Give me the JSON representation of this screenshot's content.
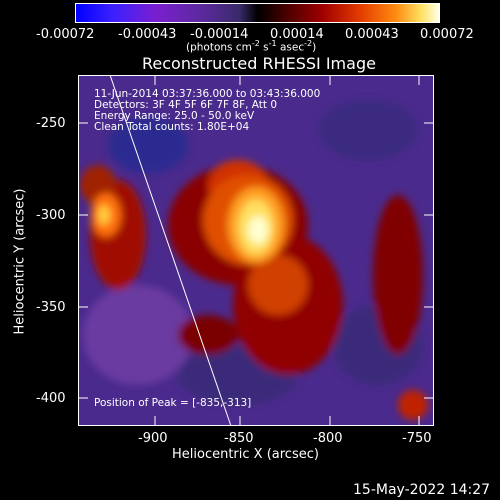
{
  "colorbar": {
    "ticks": [
      "-0.00072",
      "-0.00043",
      "-0.00014",
      "0.00014",
      "0.00043",
      "0.00072"
    ],
    "unit_label": "(photons cm",
    "unit_sup1": "-2",
    "unit_mid": " s",
    "unit_sup2": "-1",
    "unit_mid2": " asec",
    "unit_sup3": "-2",
    "unit_end": ")"
  },
  "title": "Reconstructed RHESSI Image",
  "annotations": {
    "line1": "11-Jun-2014 03:37:36.000 to 03:43:36.000",
    "line2": "Detectors: 3F 4F 5F 6F 7F 8F, Att 0",
    "line3": "Energy Range: 25.0 - 50.0 keV",
    "line4": "Clean    Total counts: 1.80E+04",
    "peak": "Position of Peak = [-835,-313]"
  },
  "axes": {
    "xlabel": "Heliocentric X (arcsec)",
    "ylabel": "Heliocentric Y (arcsec)",
    "xticks": [
      "-900",
      "-850",
      "-800",
      "-750"
    ],
    "yticks": [
      "-250",
      "-300",
      "-350",
      "-400"
    ],
    "xlim": [
      -944,
      -746
    ],
    "ylim": [
      -412,
      -217
    ]
  },
  "footer": {
    "timestamp": "15-May-2022 14:27"
  }
}
